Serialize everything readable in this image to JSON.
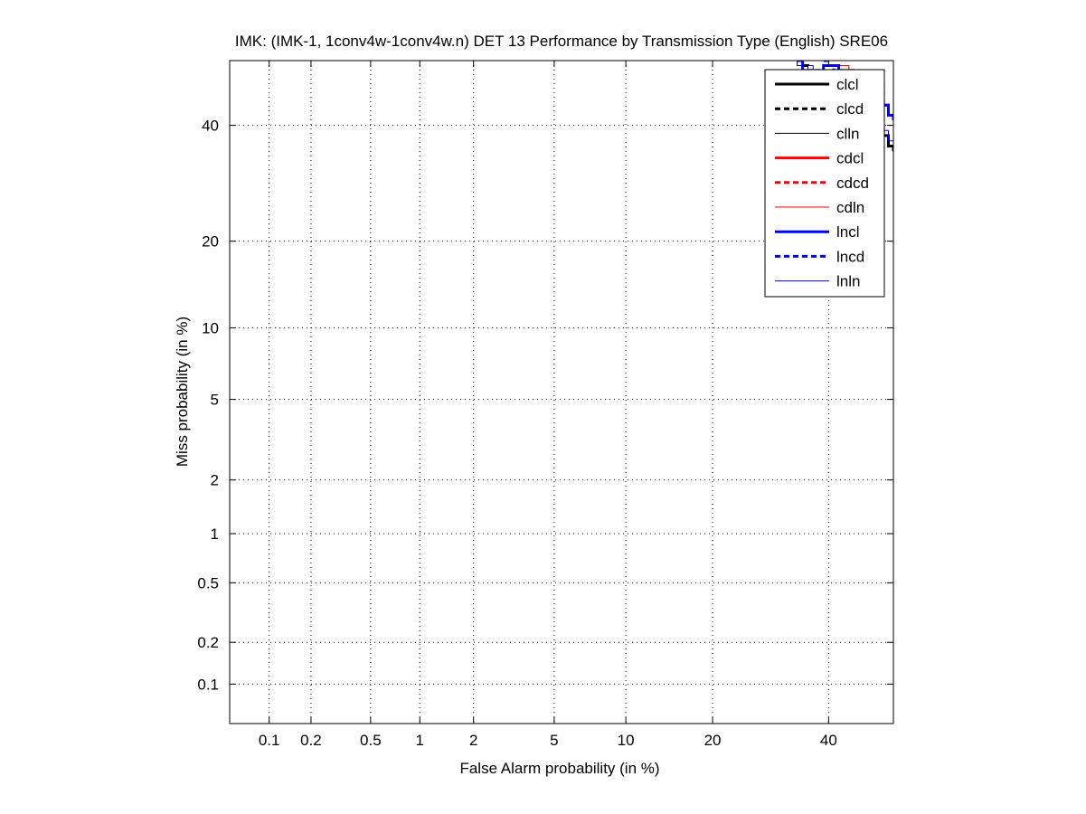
{
  "chart_data": {
    "type": "line",
    "title": "IMK: (IMK-1, 1conv4w-1conv4w.n) DET 13 Performance by Transmission Type (English) SRE06",
    "xlabel": "False Alarm probability (in %)",
    "ylabel": "Miss probability (in %)",
    "x_scale": "normal-deviate",
    "y_scale": "normal-deviate",
    "xlim": [
      0.05,
      53
    ],
    "ylim": [
      0.05,
      53
    ],
    "xticks": [
      0.1,
      0.2,
      0.5,
      1,
      2,
      5,
      10,
      20,
      40
    ],
    "xtick_labels": [
      "0.1",
      "0.2",
      "0.5",
      "1",
      "2",
      "5",
      "10",
      "20",
      "40"
    ],
    "yticks": [
      0.1,
      0.2,
      0.5,
      1,
      2,
      5,
      10,
      20,
      40
    ],
    "ytick_labels": [
      "0.1",
      "0.2",
      "0.5",
      "1",
      "2",
      "5",
      "10",
      "20",
      "40"
    ],
    "grid": true,
    "legend_position": "top-right",
    "series": [
      {
        "name": "clcl",
        "color": "#000000",
        "style": "solid",
        "width": 3,
        "points": [
          [
            44,
            48
          ],
          [
            45,
            46
          ],
          [
            47,
            45
          ],
          [
            48,
            43
          ],
          [
            49,
            41
          ],
          [
            50,
            40
          ],
          [
            51,
            38
          ],
          [
            52,
            36
          ],
          [
            53,
            35
          ]
        ]
      },
      {
        "name": "clcd",
        "color": "#000000",
        "style": "dashed",
        "width": 3,
        "points": [
          [
            35,
            52
          ],
          [
            36,
            51
          ],
          [
            38,
            50
          ],
          [
            40,
            49
          ],
          [
            42,
            48
          ],
          [
            45,
            47
          ]
        ]
      },
      {
        "name": "clln",
        "color": "#000000",
        "style": "solid",
        "width": 1,
        "points": [
          [
            33,
            53
          ],
          [
            34,
            52
          ],
          [
            36,
            51
          ],
          [
            38,
            50
          ],
          [
            40,
            50
          ],
          [
            42,
            49
          ],
          [
            44,
            48
          ]
        ]
      },
      {
        "name": "cdcl",
        "color": "#ff0000",
        "style": "solid",
        "width": 3,
        "points": [
          [
            43,
            50
          ],
          [
            45,
            49
          ],
          [
            46,
            47
          ],
          [
            48,
            46
          ],
          [
            50,
            45
          ],
          [
            51,
            44
          ],
          [
            52,
            43
          ]
        ]
      },
      {
        "name": "cdcd",
        "color": "#ff0000",
        "style": "dashed",
        "width": 3,
        "points": [
          [
            44,
            51
          ],
          [
            46,
            50
          ],
          [
            48,
            49
          ],
          [
            50,
            48
          ],
          [
            51,
            46
          ]
        ]
      },
      {
        "name": "cdln",
        "color": "#ff0000",
        "style": "solid",
        "width": 1,
        "points": [
          [
            42,
            52
          ],
          [
            44,
            51
          ],
          [
            46,
            50
          ],
          [
            48,
            49
          ],
          [
            50,
            48
          ]
        ]
      },
      {
        "name": "lncl",
        "color": "#0000ff",
        "style": "solid",
        "width": 3,
        "points": [
          [
            34,
            53
          ],
          [
            35,
            51
          ],
          [
            37,
            51
          ],
          [
            39,
            52
          ],
          [
            42,
            51
          ],
          [
            45,
            50
          ],
          [
            48,
            46
          ],
          [
            50,
            44
          ],
          [
            52,
            42
          ],
          [
            53,
            41
          ]
        ]
      },
      {
        "name": "lncd",
        "color": "#0000ff",
        "style": "dashed",
        "width": 3,
        "points": [
          [
            39,
            53
          ],
          [
            40,
            52
          ],
          [
            41,
            51
          ],
          [
            43,
            50
          ],
          [
            45,
            49
          ],
          [
            48,
            47
          ]
        ]
      },
      {
        "name": "lnln",
        "color": "#0000ff",
        "style": "solid",
        "width": 1,
        "points": [
          [
            36,
            52
          ],
          [
            37,
            50
          ],
          [
            39,
            49
          ],
          [
            41,
            48
          ],
          [
            44,
            46
          ],
          [
            47,
            44
          ],
          [
            50,
            41
          ],
          [
            51,
            39
          ],
          [
            52,
            37
          ],
          [
            53,
            36
          ]
        ]
      }
    ]
  }
}
